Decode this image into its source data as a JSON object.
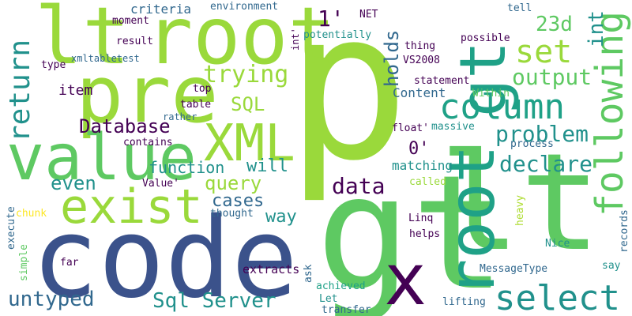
{
  "colors": {
    "lime": "#9ad93b",
    "green": "#5ec962",
    "teal": "#21918c",
    "cyan": "#1fa187",
    "blue": "#3b528b",
    "navy": "#31688e",
    "purple": "#440154",
    "indigo": "#482878",
    "yellow": "#fde725",
    "light": "#addc30"
  },
  "words": {
    "p": "p",
    "code": "code",
    "gt_big": "gt",
    "lt_big": "lt",
    "root_top": "root",
    "lt_top": "lt",
    "pre": "pre",
    "value": "value",
    "exist": "exist",
    "xml": "XML",
    "x": "x",
    "root_vert": "root",
    "gt_vert": "gt",
    "following": "following",
    "column": "column",
    "select": "select",
    "set": "set",
    "output": "output",
    "declare": "declare",
    "problem": "problem",
    "trying": "trying",
    "return": "return",
    "database": "Database",
    "sql": "SQL",
    "query": "query",
    "data": "data",
    "function": "function",
    "will": "will",
    "even": "even",
    "cases": "cases",
    "way": "way",
    "untyped": "untyped",
    "sql_server": "Sql Server",
    "int": "int",
    "holds": "holds",
    "one": "1'",
    "zero": "0'",
    "d23": "23d",
    "matching": "matching",
    "item": "item",
    "content": "Content",
    "criteria": "criteria",
    "environment": "environment",
    "net": "NET",
    "tell": "tell",
    "moment": "moment",
    "result": "result",
    "potentially": "potentially",
    "int_small": "int'",
    "thing": "thing",
    "possible": "possible",
    "type": "type",
    "xmltabletest": "xmltabletest",
    "vs2008": "VS2008",
    "statement": "statement",
    "top": "top",
    "table": "table",
    "rather": "rather",
    "within": "Within",
    "float": "float'",
    "massive": "massive",
    "contains": "contains",
    "process": "process",
    "value_q": "Value'",
    "called": "called",
    "thought": "thought",
    "linq": "Linq",
    "chunk": "chunk",
    "helps": "helps",
    "heavy": "heavy",
    "records": "records",
    "execute": "execute",
    "far": "far",
    "nice": "Nice",
    "simple": "simple",
    "extracts": "extracts",
    "ask": "ask",
    "messagetype": "MessageType",
    "say": "say",
    "achieved": "achieved",
    "let": "Let",
    "transfer": "transfer",
    "lifting": "lifting"
  }
}
